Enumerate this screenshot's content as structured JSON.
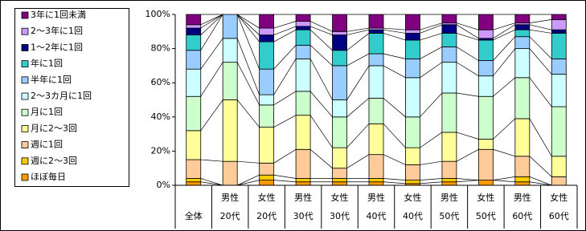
{
  "chart_data": {
    "type": "stacked_bar_100",
    "categories": [
      [
        "全体"
      ],
      [
        "男性",
        "20代"
      ],
      [
        "女性",
        "20代"
      ],
      [
        "男性",
        "30代"
      ],
      [
        "女性",
        "30代"
      ],
      [
        "男性",
        "40代"
      ],
      [
        "女性",
        "40代"
      ],
      [
        "男性",
        "50代"
      ],
      [
        "女性",
        "50代"
      ],
      [
        "男性",
        "60代"
      ],
      [
        "女性",
        "60代"
      ]
    ],
    "ylim": [
      0,
      100
    ],
    "yticks": [
      {
        "value": 0,
        "label": "0%"
      },
      {
        "value": 20,
        "label": "20%"
      },
      {
        "value": 40,
        "label": "40%"
      },
      {
        "value": 60,
        "label": "60%"
      },
      {
        "value": 80,
        "label": "80%"
      },
      {
        "value": 100,
        "label": "100%"
      }
    ],
    "grid": false,
    "legend": "left",
    "series": [
      {
        "name": "ほぼ毎日",
        "color": "#FF9900",
        "values": [
          2,
          0,
          3,
          2,
          2,
          2,
          1,
          2,
          3,
          2,
          0
        ]
      },
      {
        "name": "週に2～3回",
        "color": "#FFCC00",
        "values": [
          2,
          0,
          3,
          2,
          2,
          2,
          2,
          2,
          0,
          3,
          0
        ]
      },
      {
        "name": "週に1回",
        "color": "#FFCC99",
        "values": [
          11,
          14,
          7,
          17,
          6,
          14,
          9,
          10,
          18,
          12,
          5
        ]
      },
      {
        "name": "月に2～3回",
        "color": "#FFFF99",
        "values": [
          17,
          36,
          21,
          20,
          12,
          18,
          10,
          17,
          6,
          22,
          12
        ]
      },
      {
        "name": "月に1回",
        "color": "#CCFFCC",
        "values": [
          20,
          22,
          13,
          14,
          18,
          15,
          18,
          23,
          25,
          24,
          29
        ]
      },
      {
        "name": "2～3カ月に1回",
        "color": "#CCFFFF",
        "values": [
          16,
          14,
          6,
          19,
          10,
          19,
          23,
          18,
          12,
          17,
          19
        ]
      },
      {
        "name": "半年に1回",
        "color": "#99CCFF",
        "values": [
          11,
          14,
          15,
          8,
          20,
          7,
          11,
          9,
          9,
          7,
          9
        ]
      },
      {
        "name": "年に1回",
        "color": "#33CCCC",
        "values": [
          9,
          0,
          16,
          9,
          9,
          12,
          11,
          8,
          12,
          4,
          15
        ]
      },
      {
        "name": "1～2年に1回",
        "color": "#000080",
        "values": [
          4,
          0,
          4,
          2,
          9,
          2,
          4,
          5,
          1,
          3,
          2
        ]
      },
      {
        "name": "2～3年に1回",
        "color": "#CC99FF",
        "values": [
          2,
          0,
          4,
          3,
          2,
          1,
          2,
          1,
          5,
          1,
          6
        ]
      },
      {
        "name": "3年に1回未満",
        "color": "#800080",
        "values": [
          6,
          0,
          8,
          4,
          10,
          8,
          9,
          5,
          9,
          5,
          3
        ]
      }
    ]
  }
}
